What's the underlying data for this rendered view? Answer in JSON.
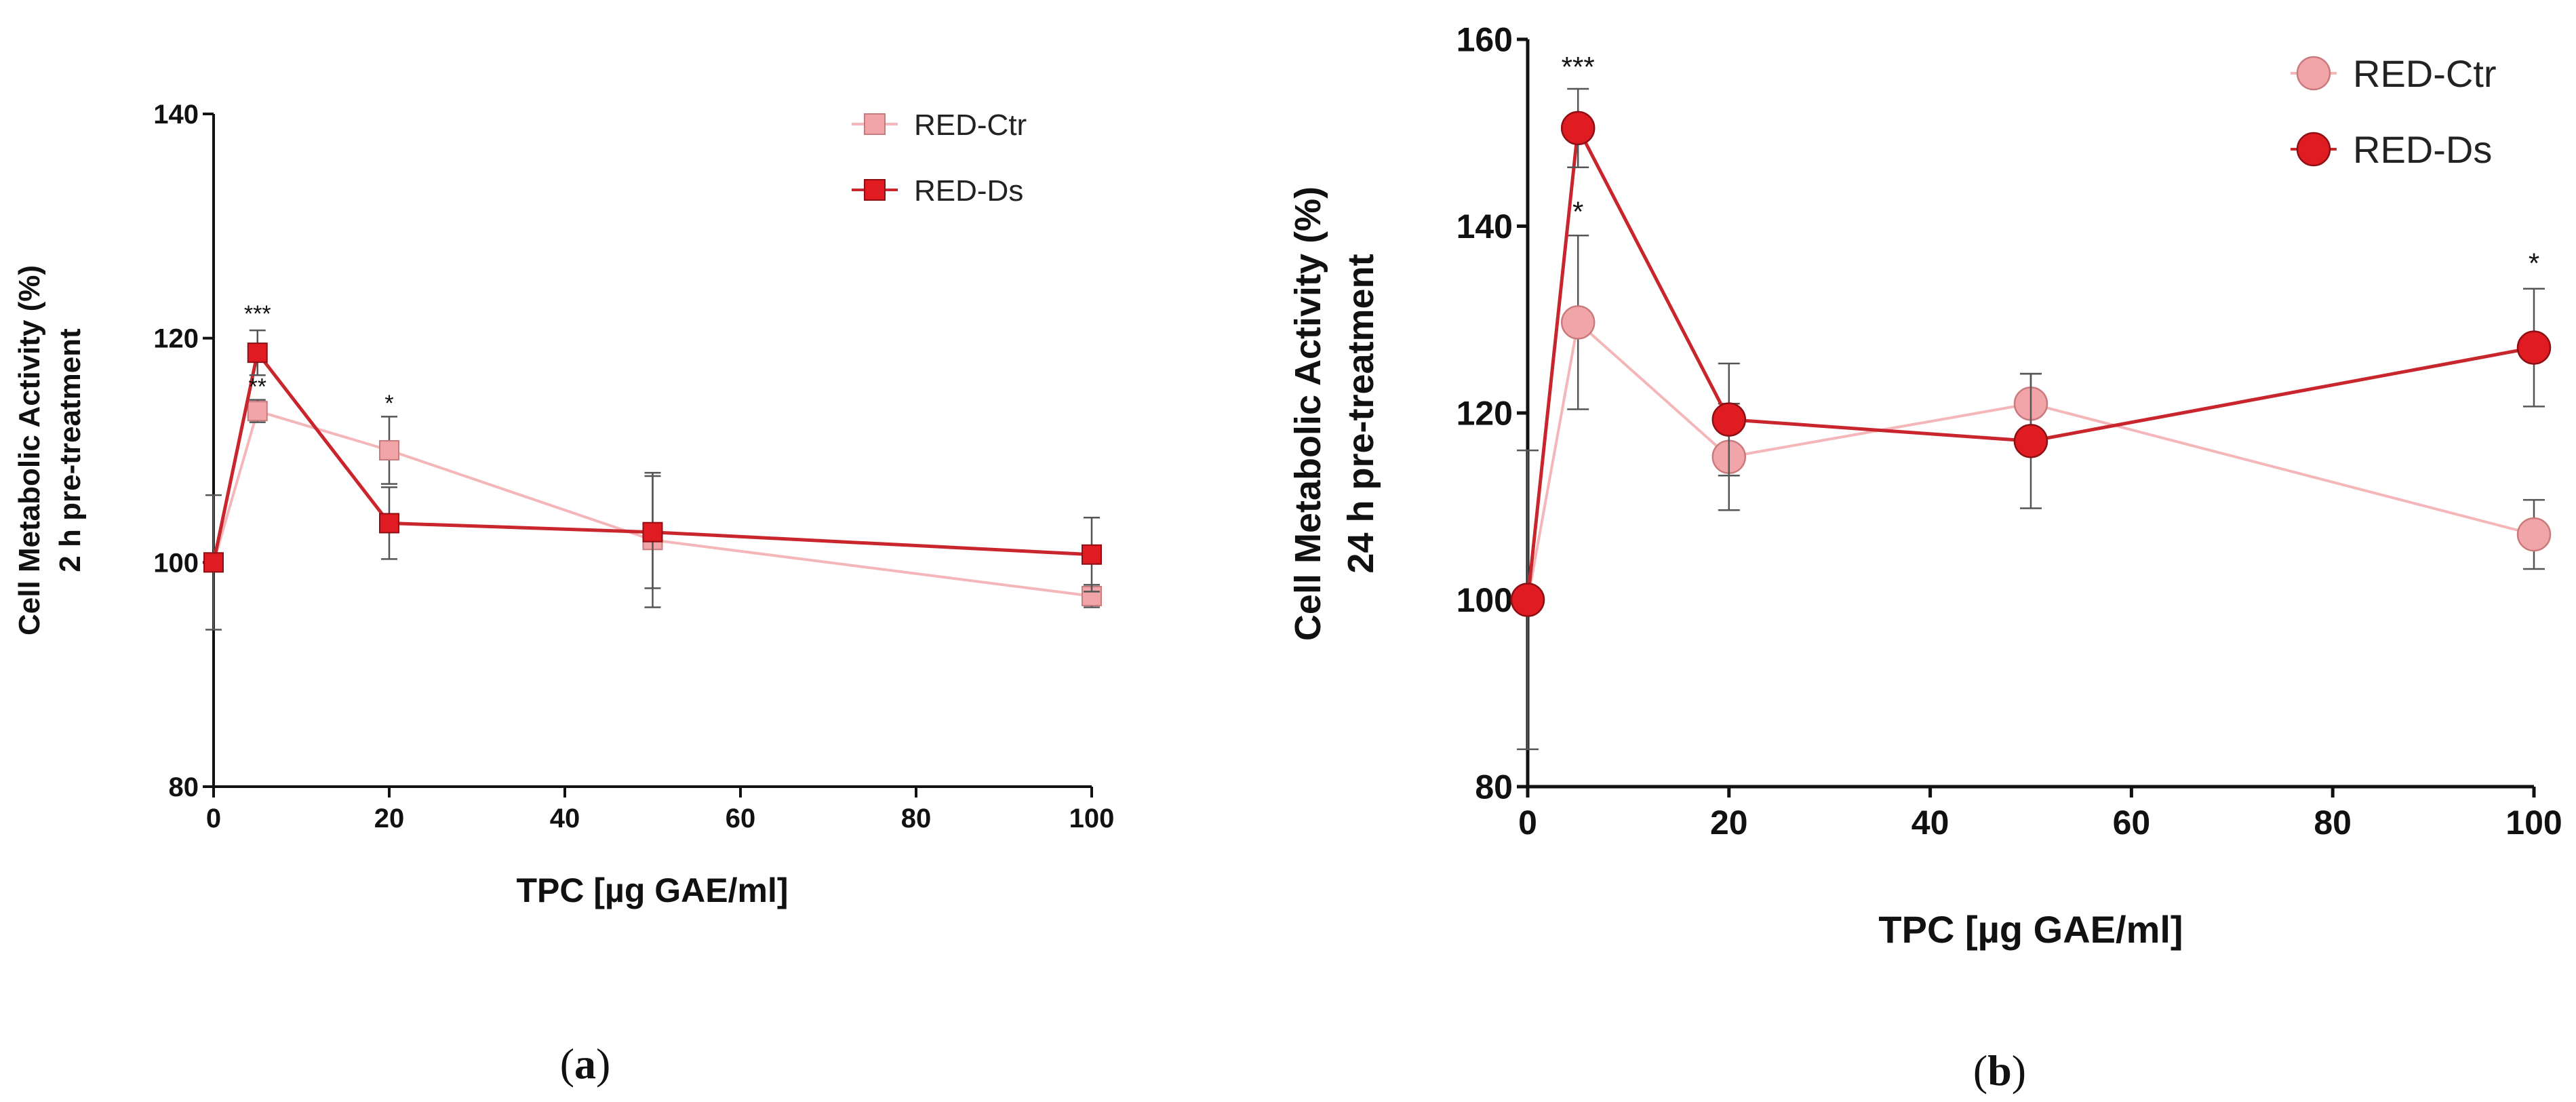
{
  "chart_data": [
    {
      "type": "line",
      "panel_label": "(a)",
      "panel_letter": "a",
      "xlabel": "TPC [µg GAE/ml]",
      "ylabel_line1": "Cell Metabolic Activity (%)",
      "ylabel_line2": "2 h pre-treatment",
      "xlim": [
        0,
        100
      ],
      "ylim": [
        80,
        140
      ],
      "xticks": [
        0,
        20,
        40,
        60,
        80,
        100
      ],
      "yticks": [
        80,
        100,
        120,
        140
      ],
      "legend_position": "top-right",
      "marker": "square",
      "series": [
        {
          "name": "RED-Ctr",
          "color": "#f2a5a8",
          "line_color": "#f4b6b8",
          "x": [
            0,
            5,
            20,
            50,
            100
          ],
          "y": [
            100,
            113.5,
            110,
            102,
            97
          ],
          "err": [
            6,
            1,
            3,
            6,
            1
          ]
        },
        {
          "name": "RED-Ds",
          "color": "#e01b22",
          "line_color": "#c8262c",
          "x": [
            0,
            5,
            20,
            50,
            100
          ],
          "y": [
            100,
            118.7,
            103.5,
            102.7,
            100.7
          ],
          "err": [
            0,
            2,
            3.2,
            5,
            3.3
          ]
        }
      ],
      "annotations": [
        {
          "x": 5,
          "y": 121.5,
          "text": "***"
        },
        {
          "x": 5,
          "y": 115,
          "text": "**"
        },
        {
          "x": 20,
          "y": 113.5,
          "text": "*"
        }
      ]
    },
    {
      "type": "line",
      "panel_label": "(b)",
      "panel_letter": "b",
      "xlabel": "TPC [µg GAE/ml]",
      "ylabel_line1": "Cell Metabolic Activity (%)",
      "ylabel_line2": "24 h pre-treatment",
      "xlim": [
        0,
        100
      ],
      "ylim": [
        80,
        160
      ],
      "xticks": [
        0,
        20,
        40,
        60,
        80,
        100
      ],
      "yticks": [
        80,
        100,
        120,
        140,
        160
      ],
      "legend_position": "top-right",
      "marker": "circle",
      "series": [
        {
          "name": "RED-Ctr",
          "color": "#f2a5a8",
          "line_color": "#f4b6b8",
          "x": [
            0,
            5,
            20,
            50,
            100
          ],
          "y": [
            100,
            129.7,
            115.3,
            121,
            107
          ],
          "err": [
            16,
            9.3,
            5.7,
            3.2,
            3.7
          ]
        },
        {
          "name": "RED-Ds",
          "color": "#e01b22",
          "line_color": "#c8262c",
          "x": [
            0,
            5,
            20,
            50,
            100
          ],
          "y": [
            100,
            150.5,
            119.3,
            117,
            127
          ],
          "err": [
            0,
            4.2,
            6,
            7.2,
            6.3
          ]
        }
      ],
      "annotations": [
        {
          "x": 5,
          "y": 156,
          "text": "***"
        },
        {
          "x": 5,
          "y": 140.5,
          "text": "*"
        },
        {
          "x": 100,
          "y": 135,
          "text": "*"
        }
      ]
    }
  ]
}
